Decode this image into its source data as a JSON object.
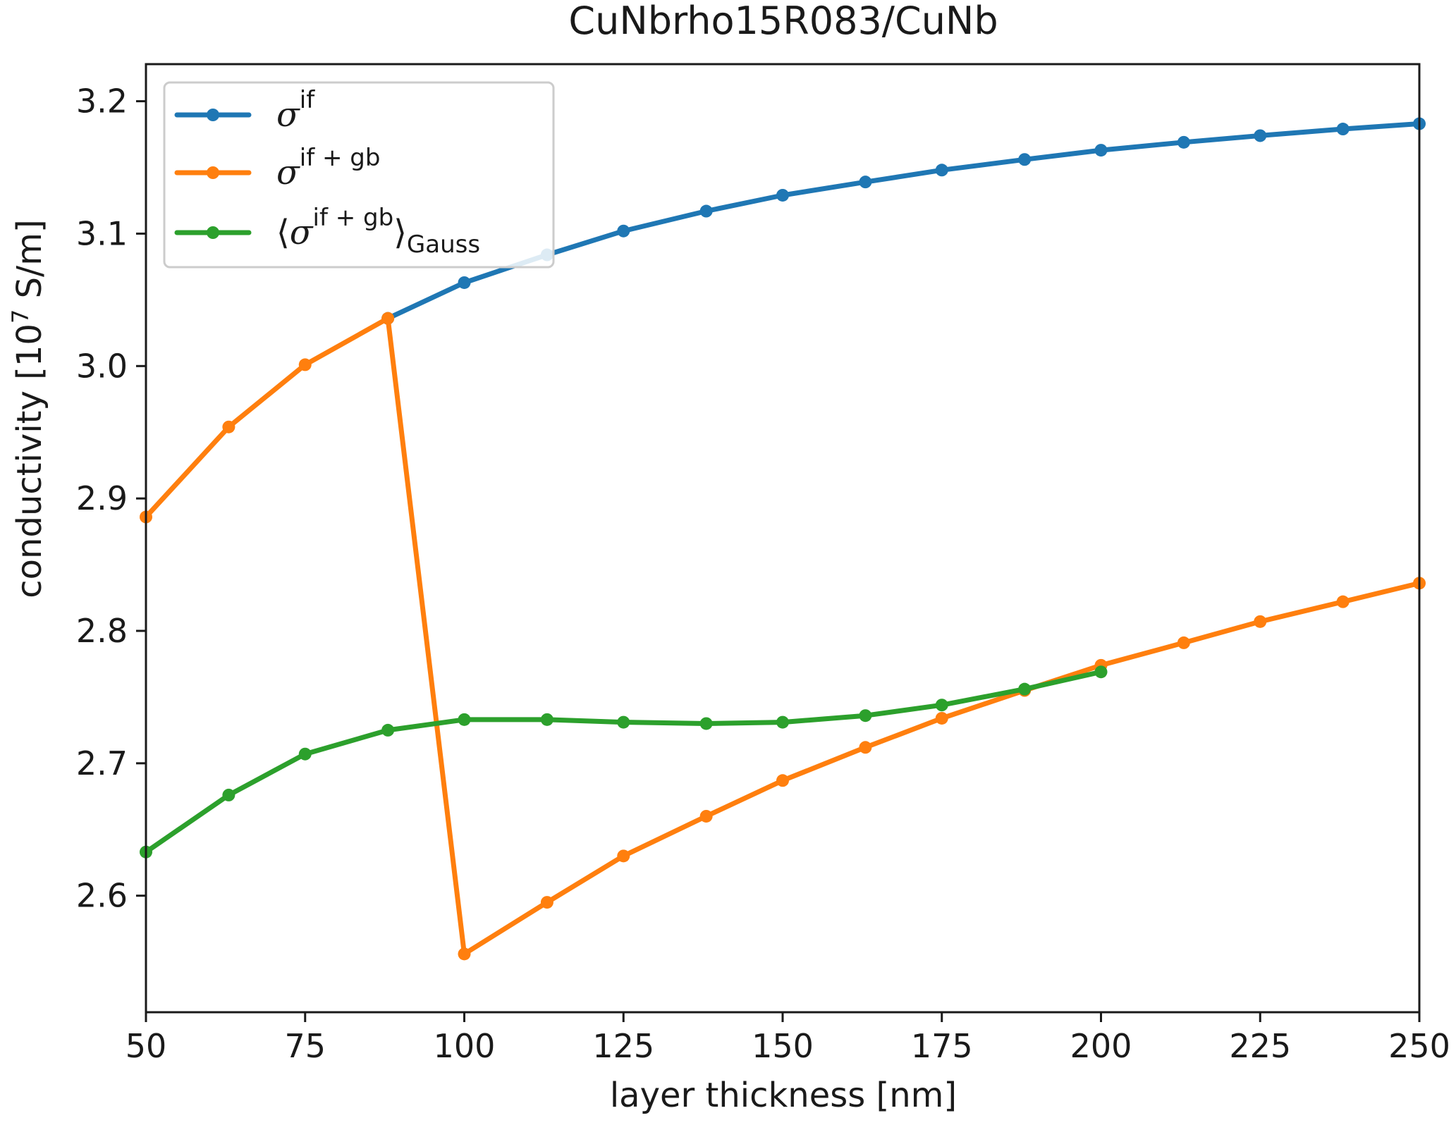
{
  "chart_data": {
    "type": "line",
    "title": "CuNbrho15R083/CuNb",
    "xlabel": "layer thickness [nm]",
    "ylabel": {
      "prefix": "conductivity [10",
      "exponent": "7",
      "suffix": " S/m]"
    },
    "xlim": [
      50,
      250
    ],
    "ylim": [
      2.512,
      3.228
    ],
    "xticks": [
      "50",
      "75",
      "100",
      "125",
      "150",
      "175",
      "200",
      "225",
      "250"
    ],
    "yticks": [
      "2.6",
      "2.7",
      "2.8",
      "2.9",
      "3.0",
      "3.1",
      "3.2"
    ],
    "grid": false,
    "legend_position": "upper-left",
    "series": [
      {
        "name": "σ^if",
        "legend": {
          "base": "σ",
          "sup": "if",
          "sub": "",
          "brackets": false
        },
        "color": "#1f77b4",
        "x": [
          88,
          100,
          113,
          125,
          138,
          150,
          163,
          175,
          188,
          200,
          213,
          225,
          238,
          250
        ],
        "y": [
          3.036,
          3.063,
          3.084,
          3.102,
          3.117,
          3.129,
          3.139,
          3.148,
          3.156,
          3.163,
          3.169,
          3.174,
          3.179,
          3.183
        ]
      },
      {
        "name": "σ^if+gb",
        "legend": {
          "base": "σ",
          "sup": "if + gb",
          "sub": "",
          "brackets": false
        },
        "color": "#ff7f0e",
        "x": [
          50,
          63,
          75,
          88,
          100,
          113,
          125,
          138,
          150,
          163,
          175,
          188,
          200,
          213,
          225,
          238,
          250
        ],
        "y": [
          2.886,
          2.954,
          3.001,
          3.036,
          2.556,
          2.595,
          2.63,
          2.66,
          2.687,
          2.712,
          2.734,
          2.755,
          2.774,
          2.791,
          2.807,
          2.822,
          2.836
        ]
      },
      {
        "name": "⟨σ^if+gb⟩_Gauss",
        "legend": {
          "base": "σ",
          "sup": "if + gb",
          "sub": "Gauss",
          "brackets": true
        },
        "color": "#2ca02c",
        "x": [
          50,
          63,
          75,
          88,
          100,
          113,
          125,
          138,
          150,
          163,
          175,
          188,
          200
        ],
        "y": [
          2.633,
          2.676,
          2.707,
          2.725,
          2.733,
          2.733,
          2.731,
          2.73,
          2.731,
          2.736,
          2.744,
          2.756,
          2.769
        ]
      }
    ]
  }
}
